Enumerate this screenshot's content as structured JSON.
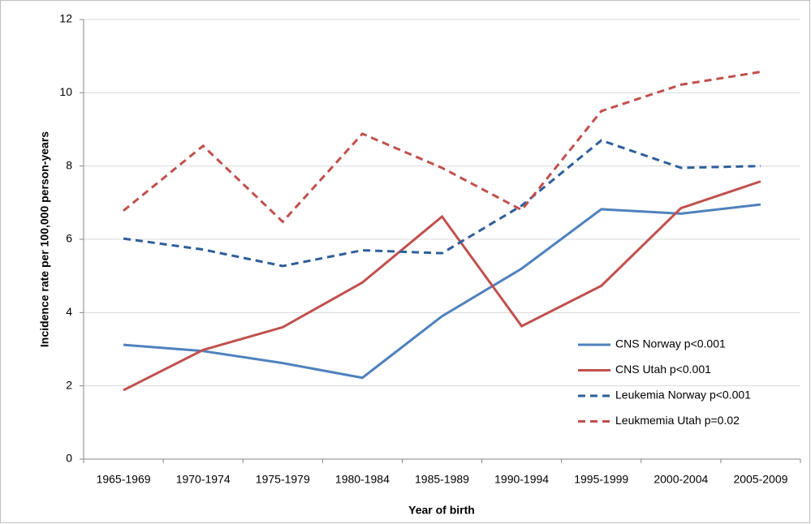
{
  "chart_data": {
    "type": "line",
    "x_label": "Year of birth",
    "y_label": "Incidence rate per 100,000 person-years",
    "categories": [
      "1965-1969",
      "1970-1974",
      "1975-1979",
      "1980-1984",
      "1985-1989",
      "1990-1994",
      "1995-1999",
      "2000-2004",
      "2005-2009"
    ],
    "series": [
      {
        "name": "CNS Norway p<0.001",
        "color": "#4f81bd",
        "dashed": false,
        "values": [
          3.12,
          2.95,
          2.62,
          2.22,
          3.9,
          5.2,
          6.82,
          6.7,
          6.95
        ]
      },
      {
        "name": "CNS Utah p<0.001",
        "color": "#c0504d",
        "dashed": false,
        "values": [
          1.88,
          2.98,
          3.6,
          4.82,
          6.62,
          3.63,
          4.73,
          6.85,
          7.58
        ]
      },
      {
        "name": "Leukemia Norway p<0.001",
        "color": "#2e5f9a",
        "dashed": true,
        "values": [
          6.02,
          5.72,
          5.27,
          5.7,
          5.62,
          6.92,
          8.7,
          7.95,
          8.0
        ]
      },
      {
        "name": "Leukmemia Utah p=0.02",
        "color": "#c0504d",
        "dashed": true,
        "values": [
          6.78,
          8.55,
          6.48,
          8.88,
          7.95,
          6.8,
          9.5,
          10.22,
          10.57
        ]
      }
    ],
    "ylim": [
      0,
      12
    ],
    "yticks": [
      0,
      2,
      4,
      6,
      8,
      10,
      12
    ],
    "grid": true,
    "legend": "lower right"
  }
}
